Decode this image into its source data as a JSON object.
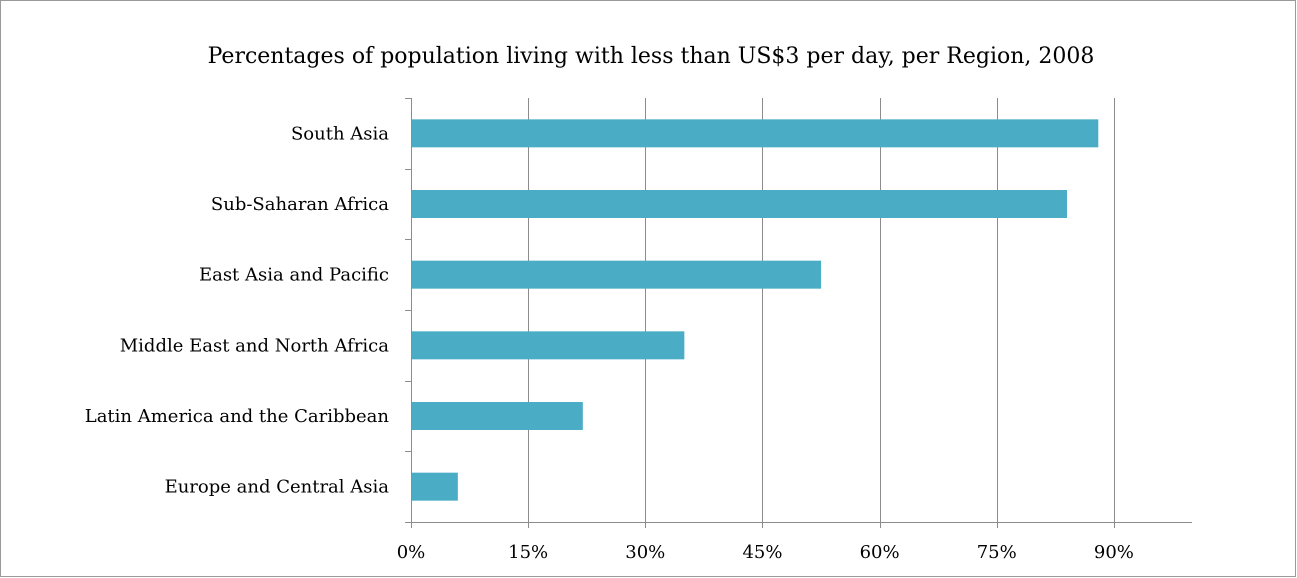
{
  "chart_data": {
    "type": "bar",
    "orientation": "horizontal",
    "title": "Percentages of population living with less than US$3 per day, per Region, 2008",
    "categories": [
      "South Asia",
      "Sub-Saharan Africa",
      "East Asia and Pacific",
      "Middle East and North Africa",
      "Latin America and the Caribbean",
      "Europe and Central Asia"
    ],
    "values": [
      88,
      84,
      52.5,
      35,
      22,
      6
    ],
    "value_unit": "%",
    "xlim": [
      0,
      100
    ],
    "xticks": [
      0,
      15,
      30,
      45,
      60,
      75,
      90
    ],
    "xtick_labels": [
      "0%",
      "15%",
      "30%",
      "45%",
      "60%",
      "75%",
      "90%"
    ],
    "grid": "vertical",
    "legend": "none",
    "bar_color": "#4bacc6",
    "grid_color": "#8c8c8c",
    "axis_color": "#8c8c8c"
  }
}
